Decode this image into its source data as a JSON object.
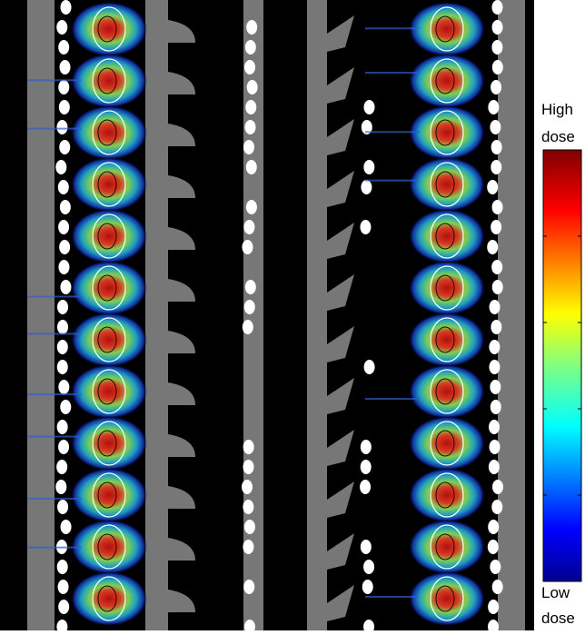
{
  "colorbar": {
    "top_label": [
      "High",
      "dose"
    ],
    "bottom_label": [
      "Low",
      "dose"
    ]
  }
}
